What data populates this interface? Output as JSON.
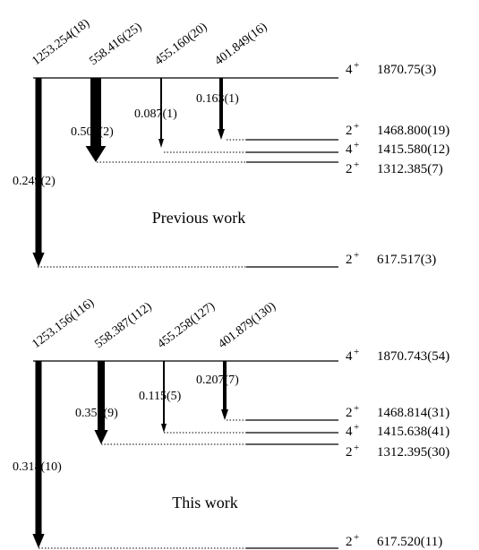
{
  "panels": [
    {
      "caption": "Previous work",
      "levels": [
        {
          "spin": "4",
          "parity": "+",
          "energy": "1870.75(3)"
        },
        {
          "spin": "2",
          "parity": "+",
          "energy": "1468.800(19)"
        },
        {
          "spin": "4",
          "parity": "+",
          "energy": "1415.580(12)"
        },
        {
          "spin": "2",
          "parity": "+",
          "energy": "1312.385(7)"
        },
        {
          "spin": "2",
          "parity": "+",
          "energy": "617.517(3)"
        }
      ],
      "transitions": [
        {
          "energy": "1253.254(18)",
          "intensity": "0.249(2)",
          "to_level": 4
        },
        {
          "energy": "558.416(25)",
          "intensity": "0.502(2)",
          "to_level": 3
        },
        {
          "energy": "455.160(20)",
          "intensity": "0.087(1)",
          "to_level": 2
        },
        {
          "energy": "401.849(16)",
          "intensity": "0.163(1)",
          "to_level": 1
        }
      ]
    },
    {
      "caption": "This work",
      "levels": [
        {
          "spin": "4",
          "parity": "+",
          "energy": "1870.743(54)"
        },
        {
          "spin": "2",
          "parity": "+",
          "energy": "1468.814(31)"
        },
        {
          "spin": "4",
          "parity": "+",
          "energy": "1415.638(41)"
        },
        {
          "spin": "2",
          "parity": "+",
          "energy": "1312.395(30)"
        },
        {
          "spin": "2",
          "parity": "+",
          "energy": "617.520(11)"
        }
      ],
      "transitions": [
        {
          "energy": "1253.156(116)",
          "intensity": "0.318(10)",
          "to_level": 4
        },
        {
          "energy": "558.387(112)",
          "intensity": "0.359(9)",
          "to_level": 3
        },
        {
          "energy": "455.258(127)",
          "intensity": "0.115(5)",
          "to_level": 2
        },
        {
          "energy": "401.879(130)",
          "intensity": "0.207(7)",
          "to_level": 1
        }
      ]
    }
  ]
}
